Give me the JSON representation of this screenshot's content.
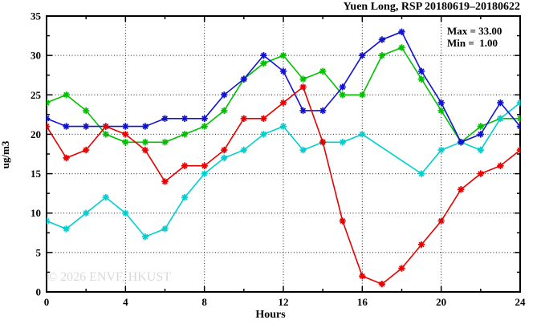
{
  "title": "Yuen Long, RSP 20180619–20180622",
  "stats": {
    "max_label": "Max = 33.00",
    "min_label": "Min =  1.00"
  },
  "watermark": "© 2026 ENVF, HKUST",
  "chart_data": {
    "type": "line",
    "title": "Yuen Long, RSP 20180619–20180622",
    "xlabel": "Hours",
    "ylabel": "ug/m3",
    "xlim": [
      0,
      24
    ],
    "ylim": [
      0,
      35
    ],
    "grid": true,
    "x_major_ticks": [
      0,
      4,
      8,
      12,
      16,
      20,
      24
    ],
    "x_minor_ticks": [
      2,
      6,
      10,
      14,
      18,
      22
    ],
    "y_major_ticks": [
      0,
      5,
      10,
      15,
      20,
      25,
      30,
      35
    ],
    "y_minor_ticks": [
      2.5,
      7.5,
      12.5,
      17.5,
      22.5,
      27.5,
      32.5
    ],
    "max": 33.0,
    "min": 1.0,
    "x": [
      0,
      1,
      2,
      3,
      4,
      5,
      6,
      7,
      8,
      9,
      10,
      11,
      12,
      13,
      14,
      15,
      16,
      17,
      18,
      19,
      20,
      21,
      22,
      23,
      24
    ],
    "series": [
      {
        "name": "series-green",
        "color": "#00c000",
        "values": [
          24,
          25,
          23,
          20,
          19,
          19,
          19,
          20,
          21,
          23,
          27,
          29,
          30,
          27,
          28,
          25,
          25,
          30,
          31,
          27,
          23,
          19,
          21,
          22,
          22
        ]
      },
      {
        "name": "series-cyan",
        "color": "#00cfcf",
        "values": [
          9,
          8,
          10,
          12,
          10,
          7,
          8,
          12,
          15,
          17,
          18,
          20,
          21,
          18,
          19,
          19,
          20,
          null,
          null,
          15,
          18,
          19,
          18,
          22,
          24
        ]
      },
      {
        "name": "series-blue",
        "color": "#1212d2",
        "values": [
          22,
          21,
          21,
          21,
          21,
          21,
          22,
          22,
          22,
          25,
          27,
          30,
          28,
          23,
          23,
          26,
          30,
          32,
          33,
          28,
          24,
          19,
          20,
          24,
          21
        ]
      },
      {
        "name": "series-red",
        "color": "#e60000",
        "values": [
          21,
          17,
          18,
          21,
          20,
          18,
          14,
          16,
          16,
          18,
          22,
          22,
          24,
          26,
          19,
          9,
          2,
          1,
          3,
          6,
          9,
          13,
          15,
          16,
          18
        ]
      }
    ]
  }
}
